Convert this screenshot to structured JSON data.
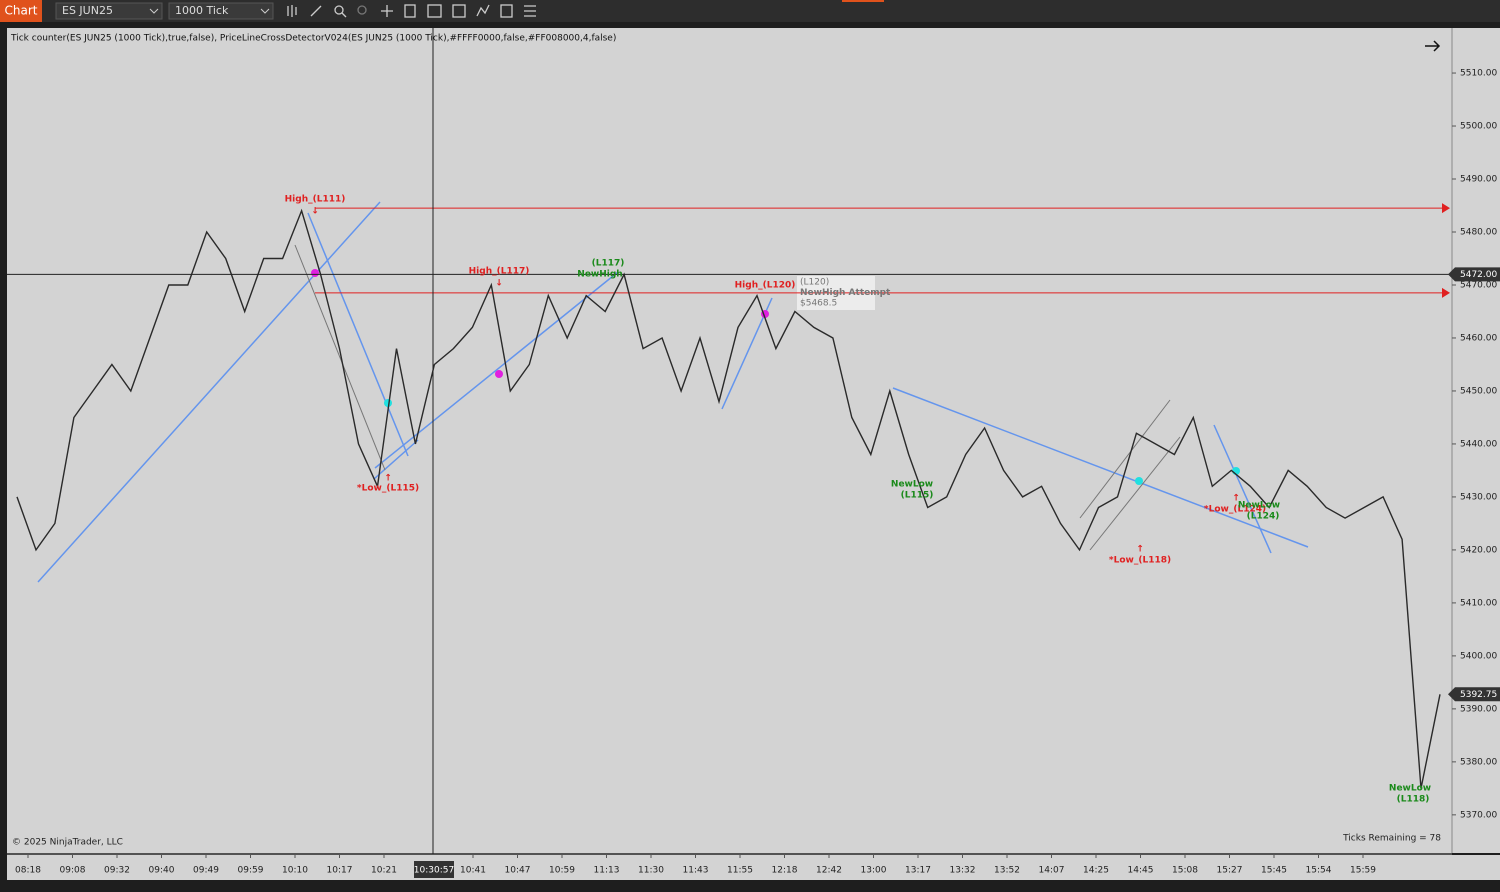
{
  "toolbar": {
    "tab": "Chart",
    "instrument": "ES JUN25",
    "interval": "1000 Tick"
  },
  "indicators": "Tick counter(ES JUN25 (1000 Tick),true,false), PriceLineCrossDetectorV024(ES JUN25 (1000 Tick),#FFFF0000,false,#FF008000,4,false)",
  "copyright": "© 2025 NinjaTrader, LLC",
  "ticks_remaining": "Ticks Remaining = 78",
  "chart_data": {
    "type": "line",
    "color": "#2a2a2a",
    "values": [
      5430,
      5420,
      5425,
      5445,
      5450,
      5455,
      5450,
      5460,
      5470,
      5470,
      5480,
      5475,
      5465,
      5475,
      5475,
      5484,
      5472,
      5458,
      5440,
      5432,
      5458,
      5440,
      5455,
      5458,
      5462,
      5470,
      5450,
      5455,
      5468,
      5460,
      5468,
      5465,
      5472,
      5458,
      5460,
      5450,
      5460,
      5448,
      5462,
      5468,
      5458,
      5465,
      5462,
      5460,
      5445,
      5438,
      5450,
      5438,
      5428,
      5430,
      5438,
      5443,
      5435,
      5430,
      5432,
      5425,
      5420,
      5428,
      5430,
      5442,
      5440,
      5438,
      5445,
      5432,
      5435,
      5432,
      5428,
      5435,
      5432,
      5428,
      5426,
      5428,
      5430,
      5422,
      5375,
      5392.75
    ],
    "ylim": [
      5362.8,
      5518.5
    ],
    "yticks": [
      {
        "value": 5510,
        "label": "5510.00"
      },
      {
        "value": 5500,
        "label": "5500.00"
      },
      {
        "value": 5490,
        "label": "5490.00"
      },
      {
        "value": 5480,
        "label": "5480.00"
      },
      {
        "value": 5470,
        "label": "5470.00"
      },
      {
        "value": 5460,
        "label": "5460.00"
      },
      {
        "value": 5450,
        "label": "5450.00"
      },
      {
        "value": 5440,
        "label": "5440.00"
      },
      {
        "value": 5430,
        "label": "5430.00"
      },
      {
        "value": 5420,
        "label": "5420.00"
      },
      {
        "value": 5410,
        "label": "5410.00"
      },
      {
        "value": 5400,
        "label": "5400.00"
      },
      {
        "value": 5390,
        "label": "5390.00"
      },
      {
        "value": 5380,
        "label": "5380.00"
      },
      {
        "value": 5370,
        "label": "5370.00"
      }
    ],
    "x_labels": [
      "08:18",
      "09:08",
      "09:32",
      "09:40",
      "09:49",
      "09:59",
      "10:10",
      "10:17",
      "10:21",
      null,
      "10:41",
      "10:47",
      "10:59",
      "11:13",
      "11:30",
      "11:43",
      "11:55",
      "12:18",
      "12:42",
      "13:00",
      "13:17",
      "13:32",
      "13:52",
      "14:07",
      "14:25",
      "14:45",
      "15:08",
      "15:27",
      "15:45",
      "15:54",
      "15:59"
    ],
    "crosshair": {
      "time": "10:30:57",
      "price": {
        "value": 5472,
        "label": "5472.00"
      }
    },
    "last_price": {
      "value": 5392.75,
      "label": "5392.75"
    },
    "level_lines": [
      5484.5,
      5468.5
    ],
    "annotations": [
      "High_(L111)",
      "↓",
      "*Low_(L115)",
      "↑",
      "High_(L117)",
      "↓",
      "(L117)",
      "NewHigh",
      "High_(L120)",
      "NewLow",
      "(L115)",
      "↑",
      "*Low_(L118)",
      "↑",
      "*Low_(L124)",
      "NewLow",
      "(L124)",
      "NewLow",
      "(L118)"
    ],
    "popup": [
      "(L120)",
      "NewHigh Attempt",
      "$5468.5"
    ]
  }
}
